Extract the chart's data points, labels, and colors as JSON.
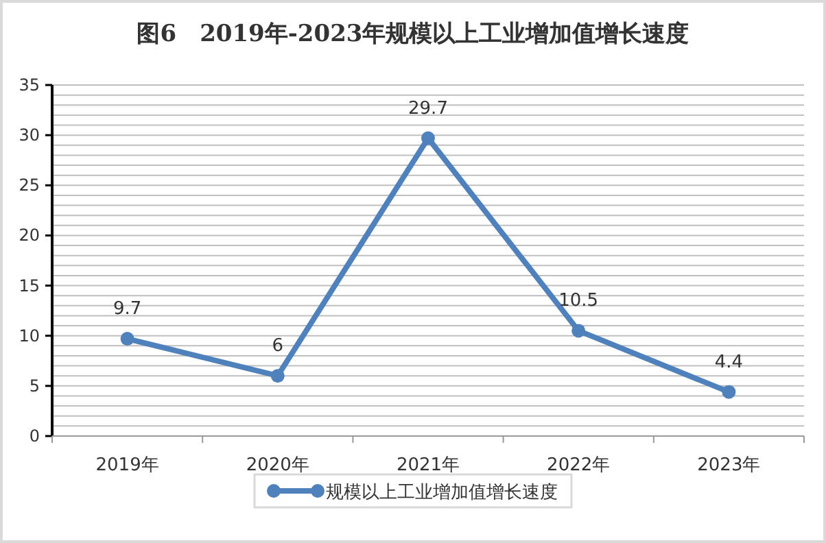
{
  "chart_data": {
    "type": "line",
    "title": "图6　2019年-2023年规模以上工业增加值增长速度",
    "categories": [
      "2019年",
      "2020年",
      "2021年",
      "2022年",
      "2023年"
    ],
    "series": [
      {
        "name": "规模以上工业增加值增长速度",
        "color": "#4f81bd",
        "values": [
          9.7,
          6,
          29.7,
          10.5,
          4.4
        ]
      }
    ],
    "ylim": [
      0,
      35
    ],
    "yticks": [
      0,
      5,
      10,
      15,
      20,
      25,
      30,
      35
    ],
    "grid": "y",
    "legend": "bottom",
    "marker": "circle",
    "line_style": "solid",
    "data_labels": true
  }
}
